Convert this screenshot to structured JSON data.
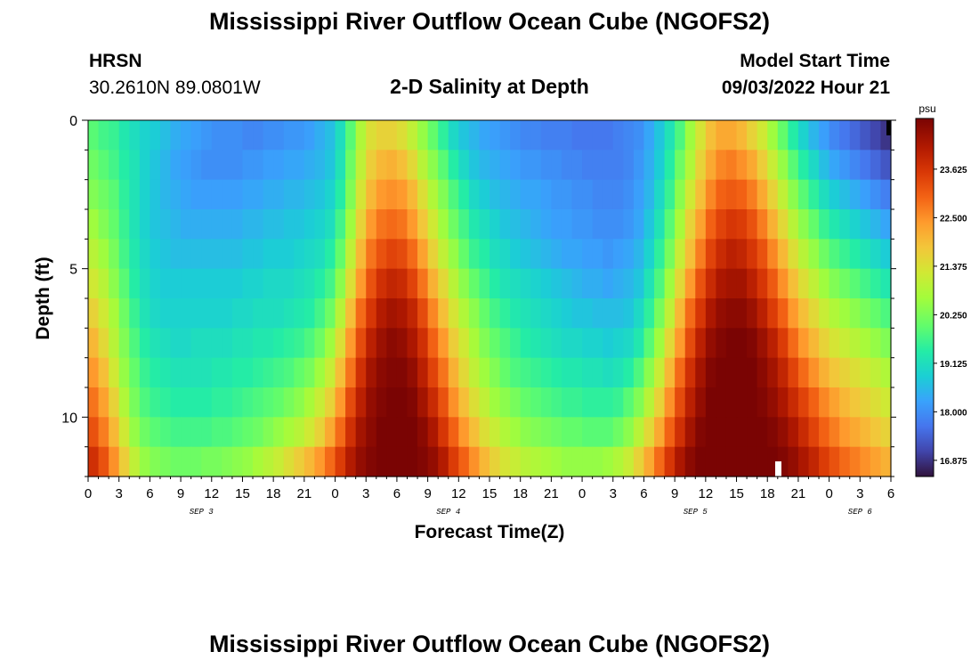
{
  "header": {
    "title": "Mississippi River Outflow Ocean Cube (NGOFS2)",
    "station": "HRSN",
    "coords": "30.2610N  89.0801W",
    "subtitle": "2-D Salinity at Depth",
    "model_start_label": "Model Start Time",
    "model_start_value": "09/03/2022 Hour 21"
  },
  "footer": {
    "title": "Mississippi River Outflow Ocean Cube (NGOFS2)"
  },
  "chart_data": {
    "type": "heatmap",
    "title": "2-D Salinity at Depth",
    "xlabel": "Forecast Time(Z)",
    "ylabel": "Depth (ft)",
    "x_tick_labels": [
      "0",
      "3",
      "6",
      "9",
      "12",
      "15",
      "18",
      "21",
      "0",
      "3",
      "6",
      "9",
      "12",
      "15",
      "18",
      "21",
      "0",
      "3",
      "6",
      "9",
      "12",
      "15",
      "18",
      "21",
      "0",
      "3",
      "6"
    ],
    "x_range_hours": [
      0,
      78
    ],
    "date_labels": [
      {
        "label": "SEP 3",
        "hour": 11
      },
      {
        "label": "SEP 4",
        "hour": 35
      },
      {
        "label": "SEP 5",
        "hour": 59
      },
      {
        "label": "SEP 6",
        "hour": 75
      }
    ],
    "y_ticks": [
      0,
      5,
      10
    ],
    "y_range": [
      0,
      12
    ],
    "depth_rows": 12,
    "colorbar": {
      "unit": "psu",
      "min": 16.5,
      "max": 24.8,
      "ticks": [
        "23.625",
        "22.500",
        "21.375",
        "20.250",
        "19.125",
        "18.000",
        "16.875"
      ],
      "tick_values": [
        23.625,
        22.5,
        21.375,
        20.25,
        19.125,
        18.0,
        16.875
      ]
    },
    "salinity_psu": [
      [
        19.9,
        19.7,
        19.6,
        19.3,
        19.1,
        18.9,
        18.8,
        18.6,
        18.4,
        18.3,
        18.2,
        18.1,
        18.0,
        18.0,
        18.0,
        17.9,
        17.9,
        18.0,
        18.0,
        18.1,
        18.1,
        18.2,
        18.4,
        18.6,
        19.1,
        19.9,
        20.8,
        21.4,
        21.6,
        21.6,
        21.4,
        21.0,
        20.5,
        20.0,
        19.5,
        19.0,
        18.7,
        18.5,
        18.3,
        18.2,
        18.1,
        18.0,
        17.9,
        17.9,
        17.8,
        17.8,
        17.8,
        17.7,
        17.7,
        17.7,
        17.7,
        17.8,
        17.9,
        18.0,
        18.3,
        18.7,
        19.2,
        19.8,
        20.6,
        21.3,
        21.9,
        22.2,
        22.2,
        22.0,
        21.6,
        21.2,
        20.6,
        20.0,
        19.4,
        18.9,
        18.5,
        18.2,
        17.9,
        17.7,
        17.5,
        17.3,
        17.1,
        16.9
      ],
      [
        20.1,
        19.9,
        19.7,
        19.4,
        19.2,
        18.9,
        18.7,
        18.5,
        18.3,
        18.2,
        18.1,
        18.0,
        18.0,
        18.0,
        18.0,
        18.1,
        18.1,
        18.2,
        18.2,
        18.3,
        18.3,
        18.4,
        18.5,
        18.7,
        19.2,
        20.1,
        21.0,
        21.7,
        22.0,
        22.1,
        21.9,
        21.5,
        20.9,
        20.4,
        19.9,
        19.4,
        19.0,
        18.7,
        18.5,
        18.4,
        18.3,
        18.2,
        18.1,
        18.1,
        18.0,
        18.0,
        17.9,
        17.9,
        17.8,
        17.8,
        17.8,
        17.8,
        17.9,
        18.1,
        18.4,
        18.8,
        19.4,
        20.1,
        20.8,
        21.6,
        22.2,
        22.6,
        22.7,
        22.5,
        22.2,
        21.7,
        21.1,
        20.5,
        19.9,
        19.4,
        19.0,
        18.6,
        18.3,
        18.1,
        17.9,
        17.7,
        17.5,
        17.3
      ],
      [
        20.3,
        20.1,
        19.9,
        19.5,
        19.2,
        18.9,
        18.7,
        18.5,
        18.4,
        18.3,
        18.2,
        18.2,
        18.2,
        18.2,
        18.2,
        18.3,
        18.3,
        18.4,
        18.4,
        18.5,
        18.5,
        18.6,
        18.7,
        18.9,
        19.4,
        20.3,
        21.3,
        22.0,
        22.4,
        22.5,
        22.4,
        22.0,
        21.4,
        20.8,
        20.3,
        19.8,
        19.4,
        19.0,
        18.8,
        18.6,
        18.5,
        18.4,
        18.3,
        18.3,
        18.2,
        18.1,
        18.1,
        18.0,
        18.0,
        17.9,
        17.9,
        17.9,
        18.0,
        18.2,
        18.5,
        19.0,
        19.6,
        20.4,
        21.2,
        21.9,
        22.6,
        23.0,
        23.1,
        23.0,
        22.7,
        22.2,
        21.6,
        21.0,
        20.4,
        19.9,
        19.5,
        19.1,
        18.8,
        18.6,
        18.4,
        18.2,
        18.0,
        17.8
      ],
      [
        20.6,
        20.3,
        20.0,
        19.6,
        19.2,
        18.9,
        18.7,
        18.6,
        18.5,
        18.4,
        18.4,
        18.4,
        18.4,
        18.4,
        18.4,
        18.5,
        18.5,
        18.6,
        18.6,
        18.7,
        18.7,
        18.8,
        18.9,
        19.1,
        19.7,
        20.6,
        21.6,
        22.4,
        22.8,
        22.9,
        22.8,
        22.4,
        21.8,
        21.2,
        20.6,
        20.1,
        19.7,
        19.3,
        19.1,
        18.9,
        18.7,
        18.6,
        18.5,
        18.4,
        18.3,
        18.2,
        18.2,
        18.1,
        18.1,
        18.0,
        18.0,
        18.0,
        18.1,
        18.3,
        18.7,
        19.2,
        19.9,
        20.7,
        21.6,
        22.3,
        23.0,
        23.4,
        23.6,
        23.5,
        23.2,
        22.7,
        22.1,
        21.5,
        20.9,
        20.4,
        20.0,
        19.6,
        19.3,
        19.1,
        18.9,
        18.7,
        18.5,
        18.3
      ],
      [
        20.9,
        20.6,
        20.2,
        19.7,
        19.3,
        19.0,
        18.8,
        18.7,
        18.6,
        18.6,
        18.6,
        18.6,
        18.6,
        18.6,
        18.6,
        18.7,
        18.7,
        18.8,
        18.8,
        18.8,
        18.9,
        19.0,
        19.1,
        19.4,
        20.0,
        21.0,
        22.0,
        22.8,
        23.2,
        23.4,
        23.3,
        22.9,
        22.3,
        21.6,
        21.0,
        20.5,
        20.0,
        19.6,
        19.4,
        19.1,
        19.0,
        18.8,
        18.7,
        18.6,
        18.5,
        18.4,
        18.3,
        18.3,
        18.2,
        18.2,
        18.1,
        18.2,
        18.3,
        18.5,
        18.9,
        19.5,
        20.2,
        21.1,
        21.9,
        22.7,
        23.4,
        23.8,
        24.0,
        23.9,
        23.6,
        23.2,
        22.6,
        22.0,
        21.4,
        20.9,
        20.5,
        20.1,
        19.8,
        19.6,
        19.4,
        19.2,
        19.0,
        18.8
      ],
      [
        21.2,
        20.9,
        20.4,
        19.9,
        19.4,
        19.1,
        18.9,
        18.8,
        18.8,
        18.8,
        18.8,
        18.8,
        18.8,
        18.8,
        18.8,
        18.9,
        18.9,
        19.0,
        19.0,
        19.0,
        19.1,
        19.2,
        19.4,
        19.7,
        20.4,
        21.4,
        22.4,
        23.2,
        23.7,
        23.9,
        23.8,
        23.4,
        22.8,
        22.1,
        21.5,
        20.9,
        20.4,
        20.0,
        19.7,
        19.4,
        19.2,
        19.1,
        19.0,
        18.9,
        18.8,
        18.7,
        18.6,
        18.5,
        18.4,
        18.4,
        18.3,
        18.4,
        18.5,
        18.7,
        19.2,
        19.8,
        20.6,
        21.5,
        22.4,
        23.2,
        23.8,
        24.2,
        24.3,
        24.3,
        24.0,
        23.6,
        23.1,
        22.5,
        21.9,
        21.4,
        21.0,
        20.6,
        20.3,
        20.1,
        19.9,
        19.7,
        19.5,
        19.3
      ],
      [
        21.6,
        21.2,
        20.7,
        20.1,
        19.6,
        19.2,
        19.0,
        18.9,
        18.9,
        18.9,
        18.9,
        18.9,
        18.9,
        18.9,
        19.0,
        19.0,
        19.1,
        19.1,
        19.1,
        19.2,
        19.3,
        19.4,
        19.7,
        20.1,
        20.9,
        21.9,
        22.9,
        23.6,
        24.1,
        24.3,
        24.2,
        23.9,
        23.3,
        22.6,
        21.9,
        21.3,
        20.8,
        20.4,
        20.0,
        19.7,
        19.5,
        19.3,
        19.2,
        19.1,
        19.0,
        18.9,
        18.8,
        18.7,
        18.7,
        18.6,
        18.6,
        18.6,
        18.7,
        19.0,
        19.5,
        20.2,
        21.0,
        22.0,
        22.9,
        23.6,
        24.2,
        24.5,
        24.6,
        24.6,
        24.4,
        24.0,
        23.5,
        23.0,
        22.4,
        21.9,
        21.5,
        21.1,
        20.8,
        20.6,
        20.4,
        20.2,
        20.0,
        19.8
      ],
      [
        22.0,
        21.5,
        20.9,
        20.3,
        19.8,
        19.4,
        19.2,
        19.1,
        19.0,
        19.0,
        19.1,
        19.1,
        19.1,
        19.1,
        19.2,
        19.2,
        19.3,
        19.3,
        19.4,
        19.5,
        19.6,
        19.8,
        20.1,
        20.6,
        21.4,
        22.4,
        23.3,
        24.0,
        24.4,
        24.6,
        24.5,
        24.2,
        23.7,
        23.0,
        22.4,
        21.7,
        21.2,
        20.7,
        20.3,
        20.0,
        19.8,
        19.6,
        19.4,
        19.3,
        19.2,
        19.1,
        19.0,
        19.0,
        18.9,
        18.9,
        18.8,
        18.9,
        19.0,
        19.3,
        19.9,
        20.6,
        21.5,
        22.4,
        23.3,
        24.0,
        24.5,
        24.7,
        24.8,
        24.8,
        24.7,
        24.4,
        24.0,
        23.5,
        22.9,
        22.4,
        22.0,
        21.6,
        21.3,
        21.1,
        20.9,
        20.7,
        20.5,
        20.3
      ],
      [
        22.4,
        21.9,
        21.2,
        20.5,
        20.0,
        19.6,
        19.4,
        19.3,
        19.2,
        19.2,
        19.2,
        19.2,
        19.3,
        19.3,
        19.4,
        19.4,
        19.5,
        19.6,
        19.7,
        19.8,
        20.0,
        20.2,
        20.6,
        21.1,
        21.9,
        22.8,
        23.7,
        24.3,
        24.6,
        24.7,
        24.7,
        24.5,
        24.0,
        23.4,
        22.8,
        22.1,
        21.5,
        21.0,
        20.6,
        20.3,
        20.0,
        19.8,
        19.7,
        19.6,
        19.5,
        19.4,
        19.3,
        19.3,
        19.2,
        19.2,
        19.1,
        19.2,
        19.4,
        19.8,
        20.4,
        21.1,
        22.0,
        22.9,
        23.7,
        24.3,
        24.7,
        24.8,
        24.8,
        24.8,
        24.8,
        24.6,
        24.3,
        23.9,
        23.4,
        22.9,
        22.5,
        22.1,
        21.8,
        21.6,
        21.4,
        21.2,
        21.0,
        20.8
      ],
      [
        22.8,
        22.3,
        21.6,
        20.8,
        20.2,
        19.8,
        19.6,
        19.5,
        19.4,
        19.4,
        19.4,
        19.4,
        19.5,
        19.5,
        19.6,
        19.7,
        19.8,
        19.9,
        20.0,
        20.2,
        20.4,
        20.7,
        21.1,
        21.6,
        22.4,
        23.3,
        24.0,
        24.5,
        24.7,
        24.8,
        24.8,
        24.7,
        24.3,
        23.8,
        23.2,
        22.5,
        21.9,
        21.4,
        21.0,
        20.6,
        20.4,
        20.2,
        20.0,
        19.9,
        19.8,
        19.7,
        19.6,
        19.6,
        19.5,
        19.5,
        19.5,
        19.6,
        19.9,
        20.3,
        20.9,
        21.6,
        22.5,
        23.3,
        24.0,
        24.5,
        24.8,
        24.8,
        24.8,
        24.8,
        24.8,
        24.7,
        24.5,
        24.2,
        23.8,
        23.4,
        23.0,
        22.6,
        22.3,
        22.0,
        21.8,
        21.6,
        21.4,
        21.2
      ],
      [
        23.2,
        22.7,
        22.0,
        21.2,
        20.5,
        20.1,
        19.9,
        19.8,
        19.7,
        19.7,
        19.7,
        19.7,
        19.8,
        19.8,
        19.9,
        20.0,
        20.1,
        20.3,
        20.5,
        20.7,
        20.9,
        21.2,
        21.6,
        22.2,
        22.9,
        23.7,
        24.3,
        24.6,
        24.8,
        24.8,
        24.8,
        24.8,
        24.6,
        24.2,
        23.6,
        23.0,
        22.4,
        21.9,
        21.4,
        21.1,
        20.8,
        20.6,
        20.4,
        20.3,
        20.2,
        20.1,
        20.0,
        20.0,
        19.9,
        19.9,
        19.9,
        20.1,
        20.4,
        20.9,
        21.5,
        22.2,
        23.0,
        23.7,
        24.3,
        24.7,
        24.8,
        24.8,
        24.8,
        24.8,
        24.8,
        24.8,
        24.7,
        24.5,
        24.2,
        23.8,
        23.4,
        23.0,
        22.7,
        22.4,
        22.2,
        22.0,
        21.8,
        21.6
      ],
      [
        23.7,
        23.2,
        22.5,
        21.7,
        21.0,
        20.5,
        20.3,
        20.2,
        20.1,
        20.1,
        20.1,
        20.2,
        20.2,
        20.3,
        20.4,
        20.5,
        20.7,
        20.9,
        21.1,
        21.4,
        21.7,
        22.0,
        22.4,
        22.9,
        23.5,
        24.1,
        24.5,
        24.7,
        24.8,
        24.8,
        24.8,
        24.8,
        24.7,
        24.5,
        24.1,
        23.5,
        23.0,
        22.5,
        22.0,
        21.6,
        21.3,
        21.1,
        20.9,
        20.8,
        20.7,
        20.6,
        20.5,
        20.5,
        20.5,
        20.5,
        20.6,
        20.8,
        21.1,
        21.6,
        22.2,
        22.9,
        23.6,
        24.2,
        24.6,
        24.8,
        24.8,
        24.8,
        24.8,
        24.8,
        24.8,
        24.8,
        24.8,
        24.7,
        24.5,
        24.2,
        23.9,
        23.5,
        23.2,
        22.9,
        22.7,
        22.5,
        22.3,
        22.1
      ]
    ]
  }
}
